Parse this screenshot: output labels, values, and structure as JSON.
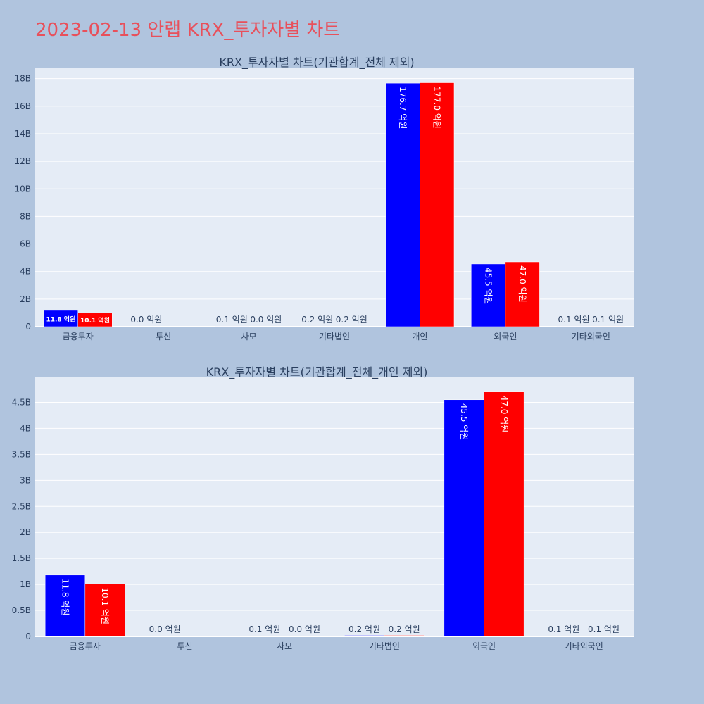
{
  "page_title": "2023-02-13 안랩 KRX_투자자별 차트",
  "colors": {
    "series1": "#0000ff",
    "series2": "#ff0000",
    "plot_bg": "#e5ecf6",
    "page_bg": "#b0c4de",
    "title": "#e8505b"
  },
  "chart_data": [
    {
      "type": "bar",
      "title": "KRX_투자자별 차트(기관합계_전체 제외)",
      "categories": [
        "금융투자",
        "투신",
        "사모",
        "기타법인",
        "개인",
        "외국인",
        "기타외국인"
      ],
      "series": [
        {
          "values": [
            1.18,
            0.0,
            0.01,
            0.02,
            17.67,
            4.55,
            0.01
          ],
          "labels": [
            "11.8 억원",
            "0.0 억원",
            "0.1 억원",
            "0.2 억원",
            "176.7 억원",
            "45.5 억원",
            "0.1 억원"
          ]
        },
        {
          "values": [
            1.01,
            0.0,
            0.0,
            0.02,
            17.7,
            4.7,
            0.01
          ],
          "labels": [
            "10.1 억원",
            "",
            "0.0 억원",
            "0.2 억원",
            "177.0 억원",
            "47.0 억원",
            "0.1 억원"
          ]
        }
      ],
      "ylim": [
        0,
        18.8
      ],
      "yticks": [
        0,
        2,
        4,
        6,
        8,
        10,
        12,
        14,
        16,
        18
      ],
      "ytick_labels": [
        "0",
        "2B",
        "4B",
        "6B",
        "8B",
        "10B",
        "12B",
        "14B",
        "16B",
        "18B"
      ],
      "grid": true,
      "legend": "none"
    },
    {
      "type": "bar",
      "title": "KRX_투자자별 차트(기관합계_전체_개인 제외)",
      "categories": [
        "금융투자",
        "투신",
        "사모",
        "기타법인",
        "외국인",
        "기타외국인"
      ],
      "series": [
        {
          "values": [
            1.18,
            0.0,
            0.01,
            0.02,
            4.55,
            0.01
          ],
          "labels": [
            "11.8 억원",
            "0.0 억원",
            "0.1 억원",
            "0.2 억원",
            "45.5 억원",
            "0.1 억원"
          ]
        },
        {
          "values": [
            1.01,
            0.0,
            0.0,
            0.02,
            4.7,
            0.01
          ],
          "labels": [
            "10.1 억원",
            "",
            "0.0 억원",
            "0.2 억원",
            "47.0 억원",
            "0.1 억원"
          ]
        }
      ],
      "ylim": [
        0,
        4.98
      ],
      "yticks": [
        0,
        0.5,
        1,
        1.5,
        2,
        2.5,
        3,
        3.5,
        4,
        4.5
      ],
      "ytick_labels": [
        "0",
        "0.5B",
        "1B",
        "1.5B",
        "2B",
        "2.5B",
        "3B",
        "3.5B",
        "4B",
        "4.5B"
      ],
      "grid": true,
      "legend": "none"
    }
  ]
}
